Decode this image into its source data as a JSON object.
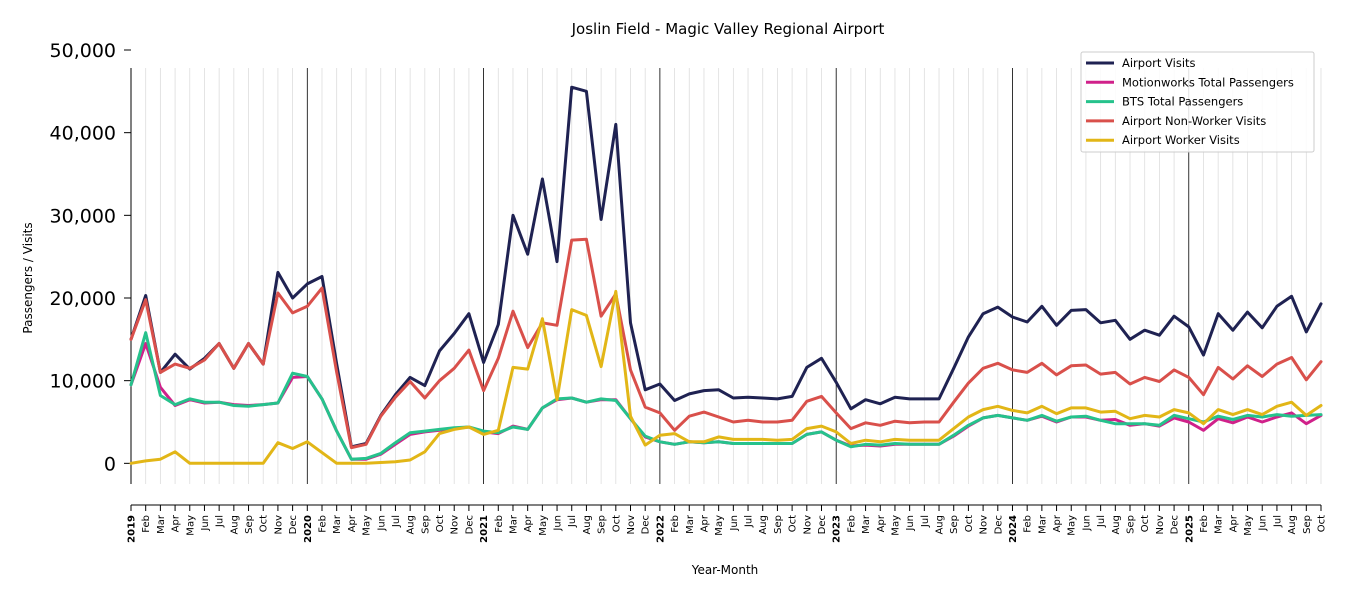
{
  "chart_data": {
    "type": "line",
    "title": "Joslin Field - Magic Valley Regional Airport",
    "xlabel": "Year-Month",
    "ylabel": "Passengers / Visits",
    "yticks": [
      0,
      10000,
      20000,
      30000,
      40000,
      50000
    ],
    "ytick_labels": [
      "0",
      "10,000",
      "20,000",
      "30,000",
      "40,000",
      "50,000"
    ],
    "ylim": [
      -2500,
      50000
    ],
    "legend_position": "top-right",
    "grid": "vertical lines per month, year boundaries darker",
    "x": [
      "2019",
      "Feb",
      "Mar",
      "Apr",
      "May",
      "Jun",
      "Jul",
      "Aug",
      "Sep",
      "Oct",
      "Nov",
      "Dec",
      "2020",
      "Feb",
      "Mar",
      "Apr",
      "May",
      "Jun",
      "Jul",
      "Aug",
      "Sep",
      "Oct",
      "Nov",
      "Dec",
      "2021",
      "Feb",
      "Mar",
      "Apr",
      "May",
      "Jun",
      "Jul",
      "Aug",
      "Sep",
      "Oct",
      "Nov",
      "Dec",
      "2022",
      "Feb",
      "Mar",
      "Apr",
      "May",
      "Jun",
      "Jul",
      "Aug",
      "Sep",
      "Oct",
      "Nov",
      "Dec",
      "2023",
      "Feb",
      "Mar",
      "Apr",
      "May",
      "Jun",
      "Jul",
      "Aug",
      "Sep",
      "Oct",
      "Nov",
      "Dec",
      "2024",
      "Feb",
      "Mar",
      "Apr",
      "May",
      "Jun",
      "Jul",
      "Aug",
      "Sep",
      "Oct",
      "Nov",
      "Dec",
      "2025",
      "Feb",
      "Mar",
      "Apr",
      "May",
      "Jun",
      "Jul",
      "Aug",
      "Sep",
      "Oct"
    ],
    "series": [
      {
        "name": "Airport Visits",
        "color": "#1f2252",
        "values": [
          15000,
          20300,
          11000,
          13200,
          11400,
          12700,
          14500,
          11500,
          14500,
          12000,
          23100,
          20000,
          21700,
          22600,
          12000,
          2000,
          2400,
          5800,
          8300,
          10400,
          9400,
          13600,
          15700,
          18100,
          12200,
          16800,
          30000,
          25300,
          34400,
          24400,
          45500,
          45000,
          29500,
          41000,
          17000,
          8900,
          9600,
          7600,
          8400,
          8800,
          8900,
          7900,
          8000,
          7900,
          7800,
          8100,
          11600,
          12700,
          9800,
          6600,
          7700,
          7200,
          8000,
          7800,
          7800,
          7800,
          11500,
          15300,
          18100,
          18900,
          17700,
          17100,
          19000,
          16700,
          18500,
          18600,
          17000,
          17300,
          15000,
          16100,
          15500,
          17800,
          16500,
          13100,
          18100,
          16100,
          18300,
          16400,
          19000,
          20200,
          15900,
          19300
        ]
      },
      {
        "name": "Motionworks Total Passengers",
        "color": "#d0218a",
        "values": [
          9500,
          14500,
          9200,
          7000,
          7700,
          7300,
          7400,
          7100,
          7000,
          7100,
          7300,
          10400,
          10500,
          7800,
          3900,
          500,
          500,
          1100,
          2300,
          3500,
          3800,
          4000,
          4200,
          4400,
          3800,
          3600,
          4500,
          4100,
          6700,
          7700,
          7900,
          7400,
          7700,
          7700,
          5400,
          3200,
          2600,
          2300,
          2600,
          2500,
          2600,
          2400,
          2400,
          2400,
          2400,
          2400,
          3500,
          3800,
          2800,
          2100,
          2200,
          2100,
          2300,
          2300,
          2300,
          2300,
          3300,
          4500,
          5500,
          5800,
          5500,
          5200,
          5700,
          5000,
          5600,
          5600,
          5200,
          5300,
          4600,
          4800,
          4500,
          5500,
          5000,
          4000,
          5400,
          4900,
          5600,
          5000,
          5600,
          6100,
          4800,
          5800
        ]
      },
      {
        "name": "BTS Total Passengers",
        "color": "#26c28c",
        "values": [
          9500,
          15800,
          8200,
          7100,
          7800,
          7400,
          7400,
          7000,
          6900,
          7100,
          7300,
          10900,
          10500,
          7800,
          3900,
          500,
          600,
          1200,
          2500,
          3700,
          3900,
          4100,
          4300,
          4400,
          3900,
          3700,
          4400,
          4100,
          6700,
          7800,
          7900,
          7400,
          7800,
          7600,
          5400,
          3300,
          2600,
          2300,
          2600,
          2500,
          2600,
          2400,
          2400,
          2400,
          2400,
          2400,
          3500,
          3800,
          2800,
          2000,
          2300,
          2200,
          2400,
          2300,
          2300,
          2300,
          3400,
          4600,
          5500,
          5800,
          5500,
          5200,
          5800,
          5100,
          5600,
          5700,
          5200,
          4800,
          4800,
          4800,
          4600,
          5800,
          5400,
          5000,
          5700,
          5300,
          5800,
          5600,
          5900,
          5700,
          5800,
          5900
        ]
      },
      {
        "name": "Airport Non-Worker Visits",
        "color": "#d9504b",
        "values": [
          15000,
          19800,
          11000,
          12000,
          11500,
          12500,
          14500,
          11500,
          14500,
          12000,
          20600,
          18200,
          19000,
          21200,
          11000,
          1900,
          2300,
          5700,
          8000,
          9900,
          7900,
          10000,
          11500,
          13700,
          8800,
          12700,
          18400,
          14000,
          17000,
          16700,
          27000,
          27100,
          17800,
          20500,
          11300,
          6800,
          6100,
          4000,
          5700,
          6200,
          5600,
          5000,
          5200,
          5000,
          5000,
          5200,
          7500,
          8100,
          6100,
          4200,
          4900,
          4600,
          5100,
          4900,
          5000,
          5000,
          7400,
          9700,
          11500,
          12100,
          11300,
          11000,
          12100,
          10700,
          11800,
          11900,
          10800,
          11000,
          9600,
          10400,
          9900,
          11300,
          10400,
          8300,
          11600,
          10200,
          11800,
          10500,
          12000,
          12800,
          10100,
          12300
        ]
      },
      {
        "name": "Airport Worker Visits",
        "color": "#e2b617",
        "values": [
          0,
          300,
          500,
          1400,
          0,
          0,
          0,
          0,
          0,
          0,
          2500,
          1800,
          2600,
          1300,
          0,
          0,
          0,
          100,
          200,
          400,
          1400,
          3600,
          4100,
          4400,
          3500,
          4000,
          11600,
          11400,
          17500,
          7700,
          18600,
          17900,
          11700,
          20800,
          5700,
          2200,
          3400,
          3600,
          2600,
          2600,
          3200,
          2900,
          2900,
          2900,
          2800,
          2900,
          4200,
          4500,
          3800,
          2400,
          2800,
          2600,
          2900,
          2800,
          2800,
          2800,
          4200,
          5600,
          6500,
          6900,
          6400,
          6100,
          6900,
          6000,
          6700,
          6700,
          6200,
          6300,
          5400,
          5800,
          5600,
          6500,
          6100,
          4800,
          6500,
          5900,
          6500,
          5900,
          6900,
          7400,
          5800,
          7000
        ]
      }
    ]
  }
}
